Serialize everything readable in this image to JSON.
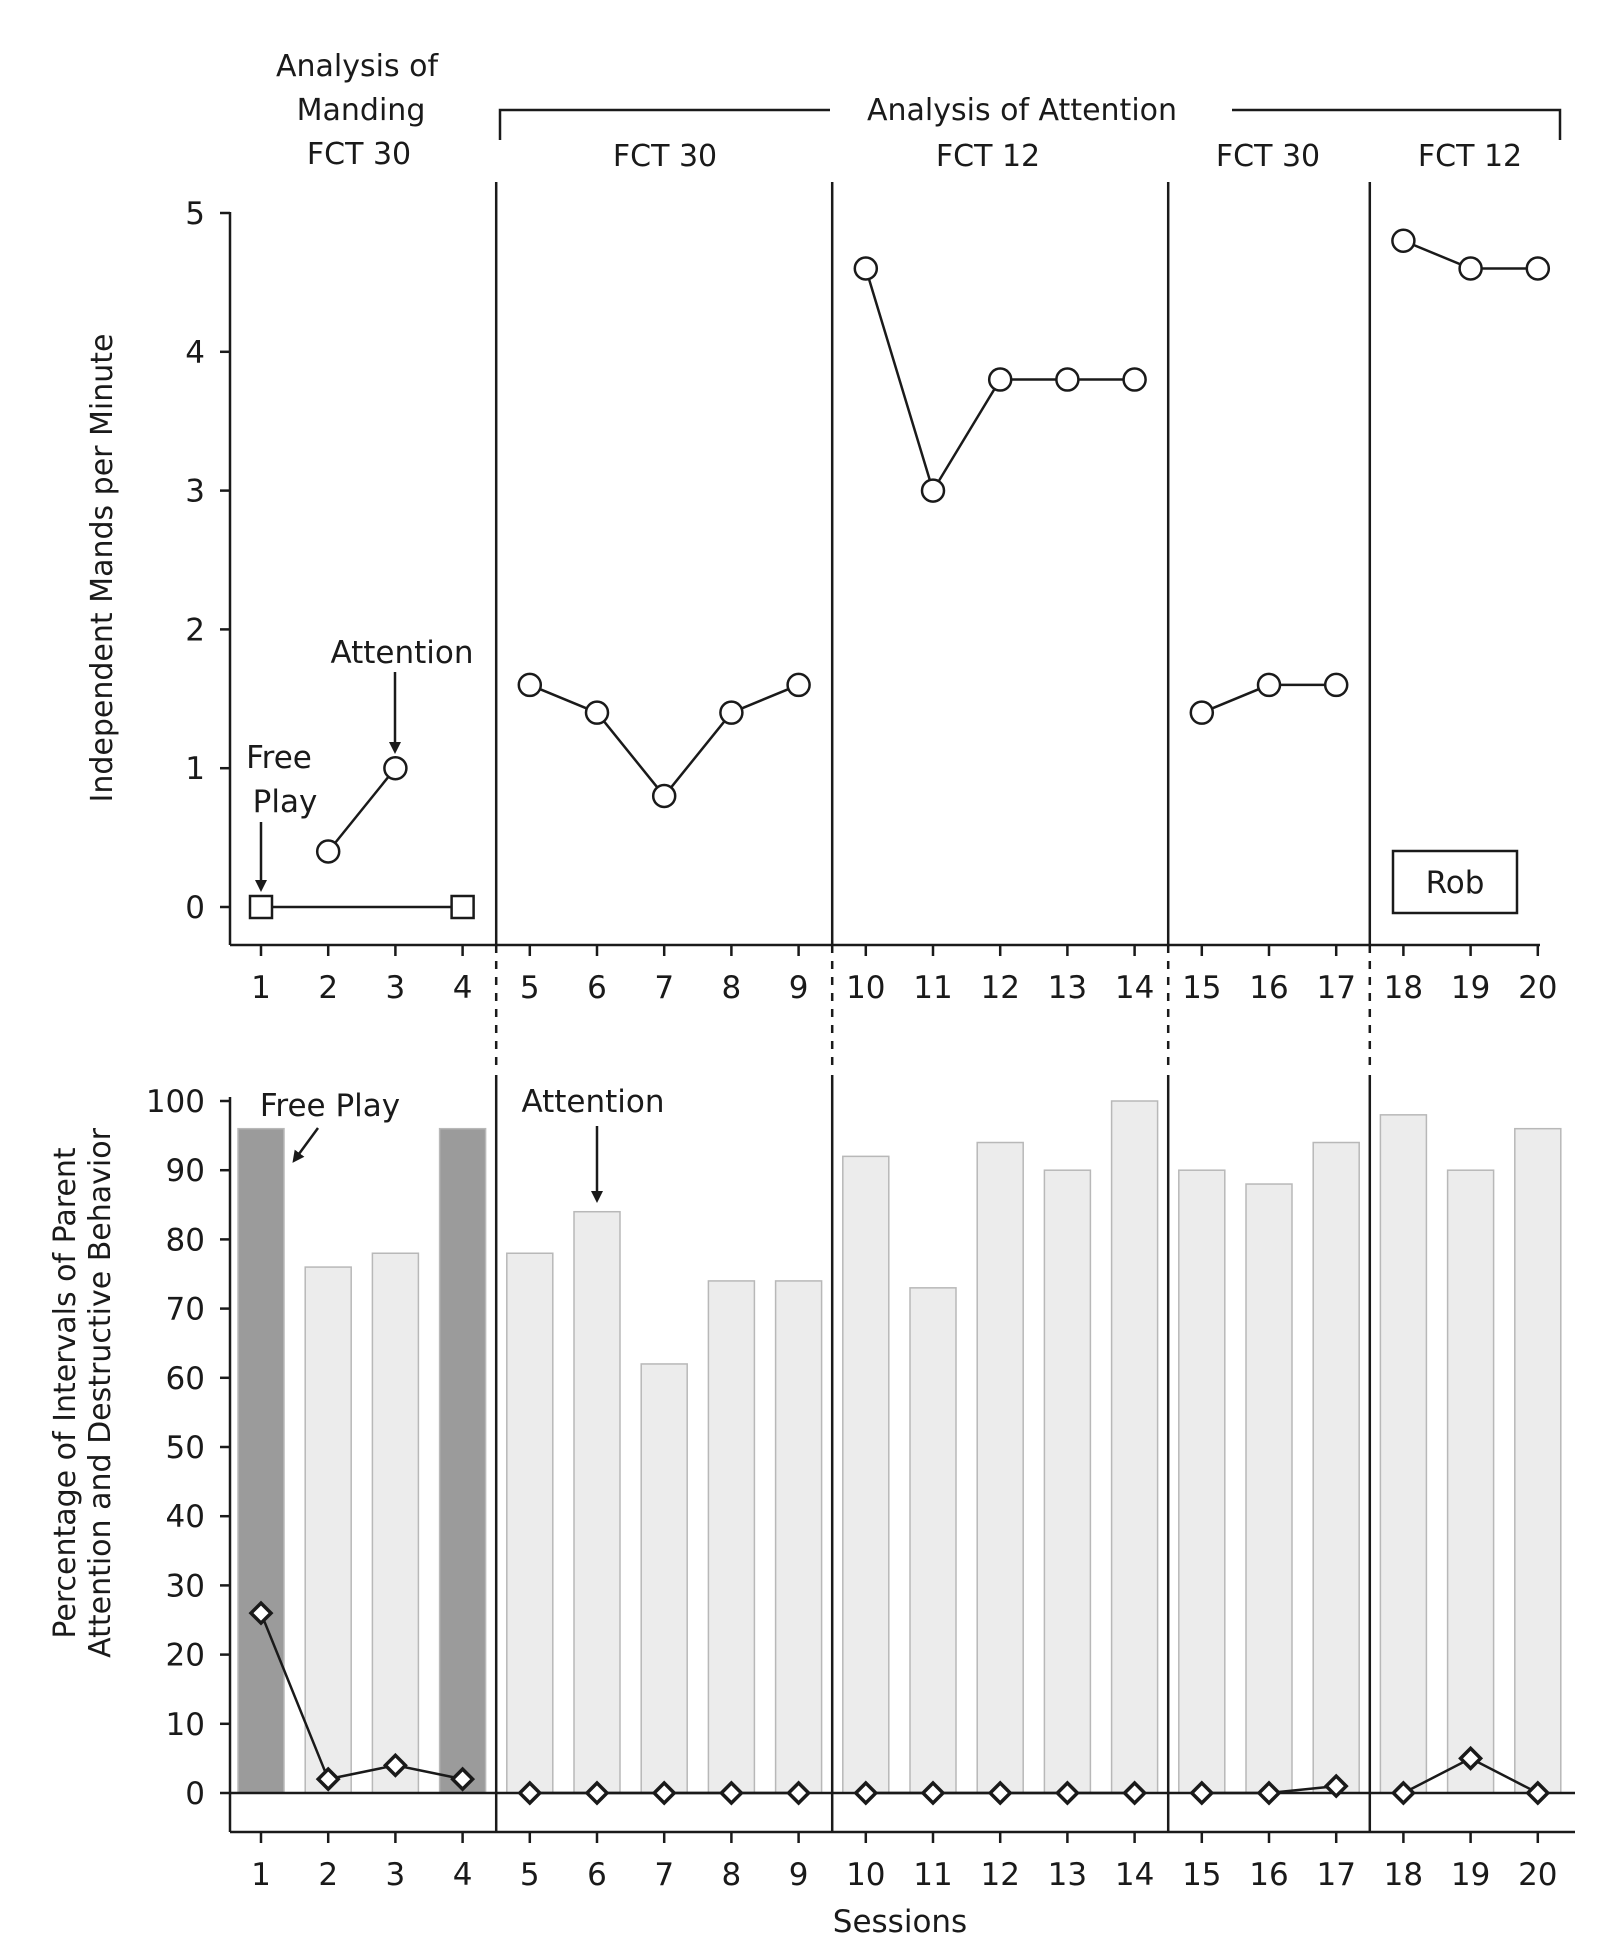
{
  "participant": "Rob",
  "headers": {
    "manding_line1": "Analysis of",
    "manding_line2": "Manding",
    "manding_line3": "FCT 30",
    "attention": "Analysis of Attention",
    "phases": [
      "FCT 30",
      "FCT 12",
      "FCT 30",
      "FCT 12"
    ]
  },
  "annotations": {
    "top_free_play_1": "Free",
    "top_free_play_2": "Play",
    "top_attention": "Attention",
    "bottom_free_play": "Free Play",
    "bottom_attention": "Attention"
  },
  "colors": {
    "free_play_bar": "#9b9b9b",
    "attention_bar": "#ececec",
    "ink": "#1a1a1a"
  },
  "chart_data": [
    {
      "type": "line",
      "ylabel": "Independent Mands per Minute",
      "xlabel": "",
      "ylim": [
        0,
        5
      ],
      "yticks": [
        0,
        1,
        2,
        3,
        4,
        5
      ],
      "x": [
        1,
        2,
        3,
        4,
        5,
        6,
        7,
        8,
        9,
        10,
        11,
        12,
        13,
        14,
        15,
        16,
        17,
        18,
        19,
        20
      ],
      "phase_change_after_sessions": [
        4,
        9,
        14,
        17
      ],
      "series": [
        {
          "name": "Free Play",
          "marker": "square",
          "points": [
            {
              "x": 1,
              "y": 0
            },
            {
              "x": 4,
              "y": 0
            }
          ]
        },
        {
          "name": "Attention",
          "marker": "circle",
          "segments": [
            [
              {
                "x": 2,
                "y": 0.4
              },
              {
                "x": 3,
                "y": 1.0
              }
            ],
            [
              {
                "x": 5,
                "y": 1.6
              },
              {
                "x": 6,
                "y": 1.4
              },
              {
                "x": 7,
                "y": 0.8
              },
              {
                "x": 8,
                "y": 1.4
              },
              {
                "x": 9,
                "y": 1.6
              }
            ],
            [
              {
                "x": 10,
                "y": 4.6
              },
              {
                "x": 11,
                "y": 3.0
              },
              {
                "x": 12,
                "y": 3.8
              },
              {
                "x": 13,
                "y": 3.8
              },
              {
                "x": 14,
                "y": 3.8
              }
            ],
            [
              {
                "x": 15,
                "y": 1.4
              },
              {
                "x": 16,
                "y": 1.6
              },
              {
                "x": 17,
                "y": 1.6
              }
            ],
            [
              {
                "x": 18,
                "y": 4.8
              },
              {
                "x": 19,
                "y": 4.6
              },
              {
                "x": 20,
                "y": 4.6
              }
            ]
          ]
        }
      ]
    },
    {
      "type": "bar",
      "ylabel_line1": "Percentage of Intervals of Parent",
      "ylabel_line2": "Attention and Destructive Behavior",
      "xlabel": "Sessions",
      "ylim": [
        0,
        100
      ],
      "yticks": [
        0,
        10,
        20,
        30,
        40,
        50,
        60,
        70,
        80,
        90,
        100
      ],
      "categories": [
        1,
        2,
        3,
        4,
        5,
        6,
        7,
        8,
        9,
        10,
        11,
        12,
        13,
        14,
        15,
        16,
        17,
        18,
        19,
        20
      ],
      "phase_change_after_sessions": [
        4,
        9,
        14,
        17
      ],
      "bars": {
        "values": [
          96,
          76,
          78,
          96,
          78,
          84,
          62,
          74,
          74,
          92,
          73,
          94,
          90,
          100,
          90,
          88,
          94,
          98,
          90,
          96
        ],
        "condition": [
          "Free Play",
          "Attention",
          "Attention",
          "Free Play",
          "Attention",
          "Attention",
          "Attention",
          "Attention",
          "Attention",
          "Attention",
          "Attention",
          "Attention",
          "Attention",
          "Attention",
          "Attention",
          "Attention",
          "Attention",
          "Attention",
          "Attention",
          "Attention"
        ]
      },
      "line": {
        "marker": "diamond",
        "segments": [
          [
            {
              "x": 1,
              "y": 26
            },
            {
              "x": 2,
              "y": 2
            },
            {
              "x": 3,
              "y": 4
            },
            {
              "x": 4,
              "y": 2
            }
          ],
          [
            {
              "x": 5,
              "y": 0
            },
            {
              "x": 6,
              "y": 0
            },
            {
              "x": 7,
              "y": 0
            },
            {
              "x": 8,
              "y": 0
            },
            {
              "x": 9,
              "y": 0
            }
          ],
          [
            {
              "x": 10,
              "y": 0
            },
            {
              "x": 11,
              "y": 0
            },
            {
              "x": 12,
              "y": 0
            },
            {
              "x": 13,
              "y": 0
            },
            {
              "x": 14,
              "y": 0
            }
          ],
          [
            {
              "x": 15,
              "y": 0
            },
            {
              "x": 16,
              "y": 0
            },
            {
              "x": 17,
              "y": 1
            }
          ],
          [
            {
              "x": 18,
              "y": 0
            },
            {
              "x": 19,
              "y": 5
            },
            {
              "x": 20,
              "y": 0
            }
          ]
        ]
      }
    }
  ]
}
